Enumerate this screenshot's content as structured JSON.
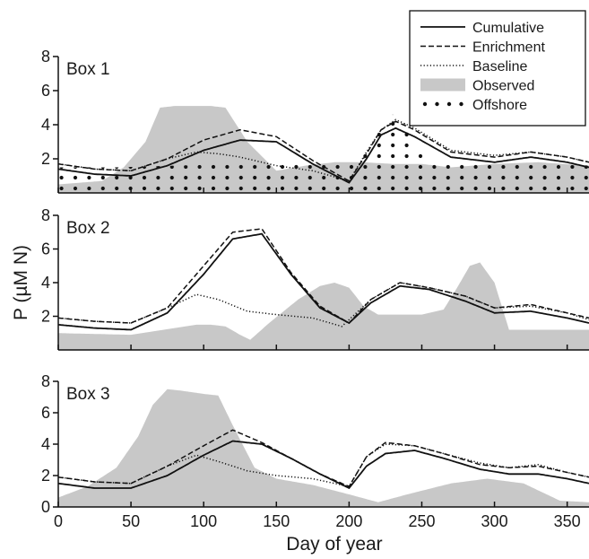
{
  "chart_data": {
    "type": "line",
    "ylabel": "P (µM N)",
    "xlabel": "Day of year",
    "xlim": [
      0,
      365
    ],
    "x_ticks": [
      0,
      50,
      100,
      150,
      200,
      250,
      300,
      350
    ],
    "legend": {
      "placement": "top-right",
      "entries": [
        {
          "name": "Cumulative",
          "style": "solid"
        },
        {
          "name": "Enrichment",
          "style": "dashed"
        },
        {
          "name": "Baseline",
          "style": "dotted"
        },
        {
          "name": "Observed",
          "style": "fill",
          "color": "#c8c8c8"
        },
        {
          "name": "Offshore",
          "style": "dots"
        }
      ]
    },
    "panels": [
      {
        "label": "Box 1",
        "ylim": [
          0,
          8
        ],
        "y_ticks": [
          2,
          4,
          6,
          8
        ],
        "y_tick_labels": [
          "2",
          "4",
          "6",
          "8"
        ],
        "series": [
          {
            "name": "Observed",
            "x": [
              0,
              30,
              45,
              60,
              70,
              80,
              90,
              105,
              115,
              130,
              150,
              170,
              190,
              210,
              230,
              250,
              270,
              300,
              330,
              365
            ],
            "y": [
              0.5,
              0.7,
              1.5,
              3.0,
              5.0,
              5.1,
              5.1,
              5.1,
              5.0,
              3.0,
              1.3,
              1.6,
              1.8,
              1.8,
              1.7,
              1.7,
              1.5,
              1.7,
              1.8,
              1.6
            ]
          },
          {
            "name": "Offshore",
            "x": [
              0,
              40,
              80,
              120,
              160,
              200,
              215,
              222,
              230,
              238,
              245,
              260,
              300,
              340,
              365
            ],
            "y": [
              1.5,
              1.5,
              1.6,
              1.7,
              1.8,
              1.9,
              2.5,
              4.0,
              4.6,
              4.2,
              2.5,
              1.9,
              1.8,
              1.7,
              1.6
            ]
          },
          {
            "name": "Cumulative",
            "x": [
              0,
              25,
              50,
              75,
              100,
              125,
              150,
              175,
              200,
              212,
              222,
              232,
              245,
              270,
              300,
              325,
              350,
              365
            ],
            "y": [
              1.4,
              1.1,
              1.0,
              1.6,
              2.5,
              3.1,
              3.0,
              1.7,
              0.6,
              2.0,
              3.4,
              3.8,
              3.3,
              2.1,
              1.8,
              2.1,
              1.8,
              1.5
            ]
          },
          {
            "name": "Enrichment",
            "x": [
              0,
              25,
              50,
              75,
              100,
              125,
              150,
              175,
              200,
              212,
              222,
              232,
              245,
              270,
              300,
              325,
              350,
              365
            ],
            "y": [
              1.7,
              1.4,
              1.3,
              2.0,
              3.1,
              3.7,
              3.3,
              1.9,
              0.7,
              2.3,
              3.7,
              4.2,
              3.7,
              2.4,
              2.1,
              2.4,
              2.1,
              1.8
            ]
          },
          {
            "name": "Baseline",
            "x": [
              0,
              25,
              50,
              75,
              95,
              110,
              125,
              150,
              175,
              200,
              212,
              222,
              232,
              245,
              270,
              300,
              325,
              350,
              365
            ],
            "y": [
              1.7,
              1.4,
              1.3,
              2.0,
              2.4,
              2.3,
              2.1,
              1.6,
              1.3,
              0.7,
              2.4,
              3.7,
              4.3,
              3.8,
              2.5,
              2.2,
              2.4,
              2.1,
              1.8
            ]
          }
        ]
      },
      {
        "label": "Box 2",
        "ylim": [
          0,
          8
        ],
        "y_ticks": [
          2,
          4,
          6,
          8
        ],
        "y_tick_labels": [
          "2",
          "4",
          "6",
          "8"
        ],
        "series": [
          {
            "name": "Observed",
            "x": [
              0,
              50,
              80,
              95,
              105,
              115,
              125,
              132,
              145,
              165,
              180,
              190,
              200,
              210,
              220,
              250,
              265,
              275,
              283,
              290,
              300,
              310,
              330,
              365
            ],
            "y": [
              1.0,
              0.9,
              1.3,
              1.5,
              1.5,
              1.4,
              0.9,
              0.6,
              1.6,
              3.0,
              3.8,
              4.0,
              3.7,
              2.6,
              2.1,
              2.1,
              2.4,
              3.8,
              5.0,
              5.2,
              4.0,
              1.2,
              1.2,
              1.2
            ]
          },
          {
            "name": "Cumulative",
            "x": [
              0,
              25,
              50,
              75,
              100,
              120,
              140,
              160,
              180,
              200,
              215,
              235,
              255,
              280,
              300,
              325,
              350,
              365
            ],
            "y": [
              1.5,
              1.3,
              1.2,
              2.2,
              4.5,
              6.6,
              6.9,
              4.5,
              2.5,
              1.6,
              2.8,
              3.8,
              3.6,
              2.9,
              2.2,
              2.3,
              1.9,
              1.6
            ]
          },
          {
            "name": "Enrichment",
            "x": [
              0,
              25,
              50,
              75,
              100,
              120,
              140,
              160,
              180,
              200,
              215,
              235,
              255,
              280,
              300,
              325,
              350,
              365
            ],
            "y": [
              1.9,
              1.7,
              1.6,
              2.5,
              5.0,
              7.0,
              7.2,
              4.6,
              2.6,
              1.6,
              3.0,
              4.0,
              3.7,
              3.2,
              2.5,
              2.7,
              2.2,
              1.9
            ]
          },
          {
            "name": "Baseline",
            "x": [
              0,
              25,
              50,
              75,
              95,
              110,
              130,
              150,
              175,
              195,
              215,
              235,
              255,
              280,
              300,
              325,
              350,
              365
            ],
            "y": [
              1.9,
              1.7,
              1.6,
              2.5,
              3.3,
              3.0,
              2.3,
              2.1,
              1.9,
              1.4,
              3.0,
              4.0,
              3.7,
              3.2,
              2.5,
              2.6,
              2.2,
              1.8
            ]
          }
        ]
      },
      {
        "label": "Box 3",
        "ylim": [
          0,
          8
        ],
        "y_ticks": [
          0,
          2,
          4,
          6,
          8
        ],
        "y_tick_labels": [
          "0",
          "2",
          "4",
          "6",
          "8"
        ],
        "series": [
          {
            "name": "Observed",
            "x": [
              0,
              20,
              40,
              55,
              65,
              75,
              85,
              100,
              110,
              120,
              135,
              150,
              175,
              200,
              220,
              240,
              270,
              295,
              320,
              345,
              365
            ],
            "y": [
              0.6,
              1.3,
              2.5,
              4.5,
              6.5,
              7.5,
              7.4,
              7.2,
              7.1,
              5.2,
              2.5,
              1.8,
              1.4,
              0.8,
              0.3,
              0.8,
              1.5,
              1.8,
              1.5,
              0.4,
              0.3
            ]
          },
          {
            "name": "Cumulative",
            "x": [
              0,
              25,
              50,
              75,
              100,
              120,
              140,
              160,
              180,
              200,
              212,
              225,
              245,
              265,
              290,
              310,
              330,
              350,
              365
            ],
            "y": [
              1.5,
              1.2,
              1.2,
              2.0,
              3.3,
              4.2,
              4.0,
              3.1,
              2.1,
              1.2,
              2.6,
              3.4,
              3.6,
              3.1,
              2.4,
              2.1,
              2.1,
              1.8,
              1.5
            ]
          },
          {
            "name": "Enrichment",
            "x": [
              0,
              25,
              50,
              75,
              100,
              120,
              140,
              160,
              180,
              200,
              212,
              225,
              245,
              265,
              290,
              310,
              330,
              350,
              365
            ],
            "y": [
              1.9,
              1.6,
              1.5,
              2.6,
              3.9,
              4.9,
              4.1,
              3.1,
              2.1,
              1.3,
              3.2,
              4.1,
              3.9,
              3.4,
              2.7,
              2.5,
              2.6,
              2.2,
              1.9
            ]
          },
          {
            "name": "Baseline",
            "x": [
              0,
              25,
              50,
              75,
              95,
              110,
              130,
              150,
              175,
              200,
              212,
              225,
              245,
              265,
              290,
              310,
              330,
              350,
              365
            ],
            "y": [
              1.9,
              1.6,
              1.5,
              2.6,
              3.3,
              2.9,
              2.3,
              2.0,
              1.8,
              1.3,
              3.2,
              4.0,
              3.9,
              3.4,
              2.8,
              2.5,
              2.7,
              2.2,
              1.9
            ]
          }
        ]
      }
    ]
  }
}
